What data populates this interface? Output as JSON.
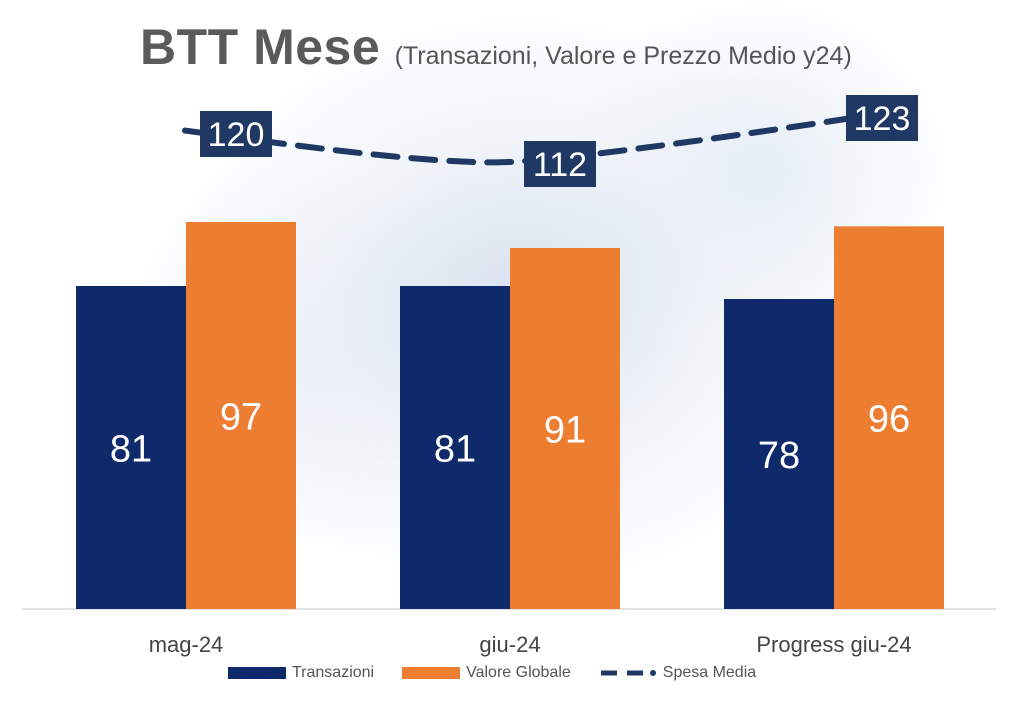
{
  "header": {
    "title": "BTT Mese",
    "subtitle": "(Transazioni, Valore e Prezzo Medio y24)"
  },
  "colors": {
    "transazioni": "#0f2a6b",
    "valore": "#ed7d31",
    "spesa": "#1f3864"
  },
  "chart_data": {
    "type": "bar",
    "categories": [
      "mag-24",
      "giu-24",
      "Progress giu-24"
    ],
    "series": [
      {
        "name": "Transazioni",
        "type": "bar",
        "values": [
          81,
          81,
          78
        ]
      },
      {
        "name": "Valore Globale",
        "type": "bar",
        "values": [
          97,
          91,
          96
        ]
      },
      {
        "name": "Spesa Media",
        "type": "line",
        "style": "dashed",
        "values": [
          120,
          112,
          123
        ]
      }
    ],
    "title": "BTT Mese",
    "subtitle": "(Transazioni, Valore e Prezzo Medio y24)",
    "legend_position": "bottom",
    "grid": false
  },
  "legend": {
    "items": [
      "Transazioni",
      "Valore Globale",
      "Spesa Media"
    ]
  }
}
